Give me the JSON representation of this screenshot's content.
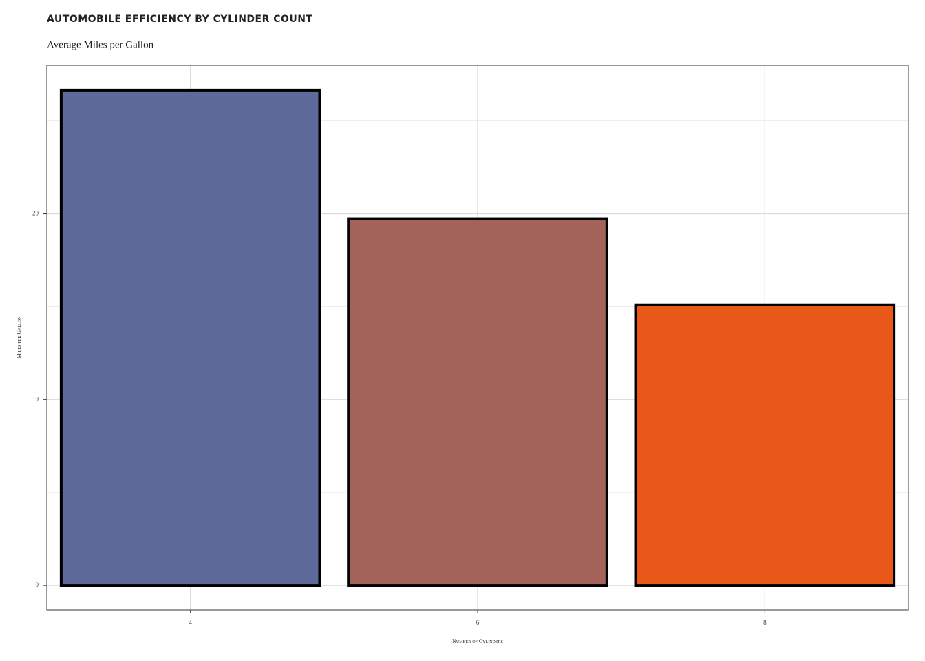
{
  "chart_data": {
    "type": "bar",
    "title": "AUTOMOBILE EFFICIENCY BY CYLINDER COUNT",
    "subtitle": "Average Miles per Gallon",
    "x_label": "Number of Cylinders",
    "y_label": "Miles per Gallon",
    "categories": [
      "4",
      "6",
      "8"
    ],
    "values": [
      26.66,
      19.74,
      15.1
    ],
    "colors": [
      "#5e6a9a",
      "#a3625a",
      "#e95818"
    ],
    "ylim": [
      -1.33,
      27.99
    ],
    "yticks": [
      0,
      10,
      20
    ],
    "y_minor_grid": [
      5,
      15,
      25
    ],
    "grid": true
  }
}
